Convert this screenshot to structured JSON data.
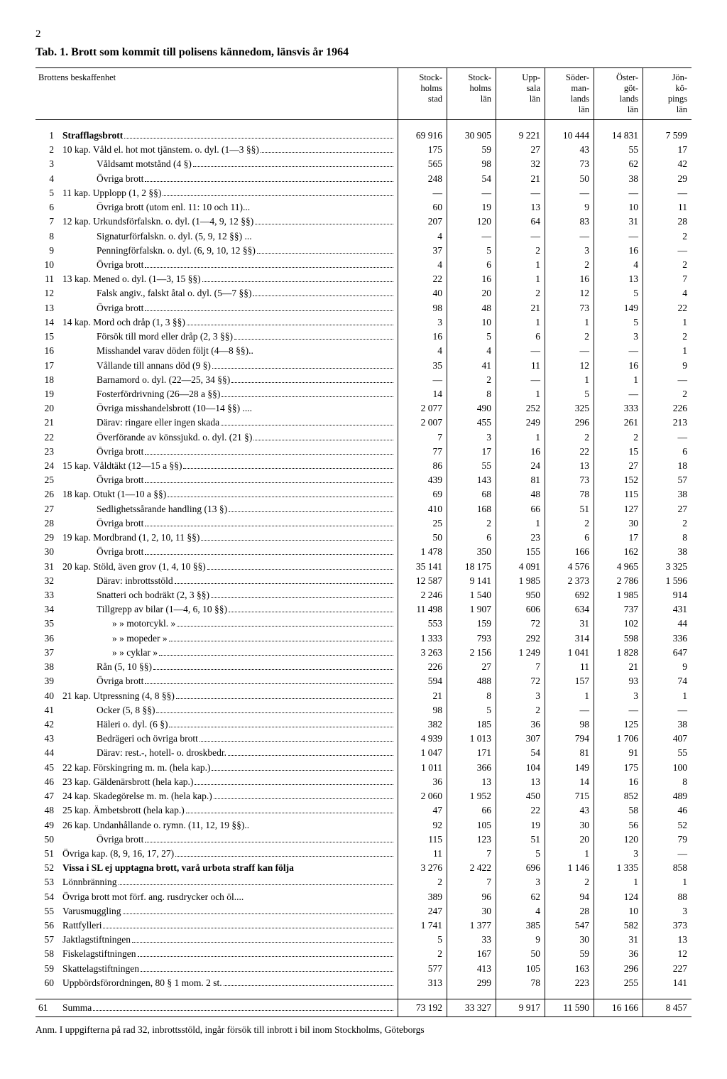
{
  "page_number": "2",
  "title": "Tab. 1. Brott som kommit till polisens kännedom, länsvis år 1964",
  "header": {
    "desc": "Brottens beskaffenhet",
    "cols": [
      "Stock-\nholms\nstad",
      "Stock-\nholms\nlän",
      "Upp-\nsala\nlän",
      "Söder-\nman-\nlands\nlän",
      "Öster-\ngöt-\nlands\nlän",
      "Jön-\nkö-\npings\nlän"
    ]
  },
  "rows": [
    {
      "n": 1,
      "desc": "Strafflagsbrott",
      "bold": true,
      "v": [
        "69 916",
        "30 905",
        "9 221",
        "10 444",
        "14 831",
        "7 599"
      ]
    },
    {
      "n": 2,
      "desc": "10 kap. Våld el. hot mot tjänstem. o. dyl. (1—3 §§)",
      "v": [
        "175",
        "59",
        "27",
        "43",
        "55",
        "17"
      ]
    },
    {
      "n": 3,
      "desc": "Våldsamt motstånd (4 §)",
      "indent": 1,
      "v": [
        "565",
        "98",
        "32",
        "73",
        "62",
        "42"
      ]
    },
    {
      "n": 4,
      "desc": "Övriga brott",
      "indent": 1,
      "v": [
        "248",
        "54",
        "21",
        "50",
        "38",
        "29"
      ]
    },
    {
      "n": 5,
      "desc": "11 kap. Upplopp (1, 2 §§)",
      "v": [
        "—",
        "—",
        "—",
        "—",
        "—",
        "—"
      ]
    },
    {
      "n": 6,
      "desc": "Övriga brott (utom enl. 11: 10 och 11)...",
      "indent": 1,
      "nodots": true,
      "v": [
        "60",
        "19",
        "13",
        "9",
        "10",
        "11"
      ]
    },
    {
      "n": 7,
      "desc": "12 kap. Urkundsförfalskn. o. dyl. (1—4, 9, 12 §§)",
      "v": [
        "207",
        "120",
        "64",
        "83",
        "31",
        "28"
      ]
    },
    {
      "n": 8,
      "desc": "Signaturförfalskn. o. dyl. (5, 9, 12 §§) ...",
      "indent": 1,
      "nodots": true,
      "v": [
        "4",
        "—",
        "—",
        "—",
        "—",
        "2"
      ]
    },
    {
      "n": 9,
      "desc": "Penningförfalskn. o. dyl. (6, 9, 10, 12 §§)",
      "indent": 1,
      "v": [
        "37",
        "5",
        "2",
        "3",
        "16",
        "—"
      ]
    },
    {
      "n": 10,
      "desc": "Övriga brott",
      "indent": 1,
      "v": [
        "4",
        "6",
        "1",
        "2",
        "4",
        "2"
      ]
    },
    {
      "n": 11,
      "desc": "13 kap. Mened o. dyl. (1—3, 15 §§)",
      "v": [
        "22",
        "16",
        "1",
        "16",
        "13",
        "7"
      ]
    },
    {
      "n": 12,
      "desc": "Falsk angiv., falskt åtal o. dyl. (5—7 §§)",
      "indent": 1,
      "v": [
        "40",
        "20",
        "2",
        "12",
        "5",
        "4"
      ]
    },
    {
      "n": 13,
      "desc": "Övriga brott",
      "indent": 1,
      "v": [
        "98",
        "48",
        "21",
        "73",
        "149",
        "22"
      ]
    },
    {
      "n": 14,
      "desc": "14 kap. Mord och dråp (1, 3 §§)",
      "v": [
        "3",
        "10",
        "1",
        "1",
        "5",
        "1"
      ]
    },
    {
      "n": 15,
      "desc": "Försök till mord eller dråp (2, 3 §§)",
      "indent": 1,
      "v": [
        "16",
        "5",
        "6",
        "2",
        "3",
        "2"
      ]
    },
    {
      "n": 16,
      "desc": "Misshandel varav döden följt (4—8 §§)..",
      "indent": 1,
      "nodots": true,
      "v": [
        "4",
        "4",
        "—",
        "—",
        "—",
        "1"
      ]
    },
    {
      "n": 17,
      "desc": "Vållande till annans död (9 §)",
      "indent": 1,
      "v": [
        "35",
        "41",
        "11",
        "12",
        "16",
        "9"
      ]
    },
    {
      "n": 18,
      "desc": "Barnamord o. dyl. (22—25, 34 §§)",
      "indent": 1,
      "v": [
        "—",
        "2",
        "—",
        "1",
        "1",
        "—"
      ]
    },
    {
      "n": 19,
      "desc": "Fosterfördrivning (26—28 a §§)",
      "indent": 1,
      "v": [
        "14",
        "8",
        "1",
        "5",
        "—",
        "2"
      ]
    },
    {
      "n": 20,
      "desc": "Övriga misshandelsbrott (10—14 §§) ....",
      "indent": 1,
      "nodots": true,
      "v": [
        "2 077",
        "490",
        "252",
        "325",
        "333",
        "226"
      ]
    },
    {
      "n": 21,
      "desc": "Därav: ringare eller ingen skada",
      "indent": 1,
      "v": [
        "2 007",
        "455",
        "249",
        "296",
        "261",
        "213"
      ]
    },
    {
      "n": 22,
      "desc": "Överförande av könssjukd. o. dyl. (21 §)",
      "indent": 1,
      "v": [
        "7",
        "3",
        "1",
        "2",
        "2",
        "—"
      ]
    },
    {
      "n": 23,
      "desc": "Övriga brott",
      "indent": 1,
      "v": [
        "77",
        "17",
        "16",
        "22",
        "15",
        "6"
      ]
    },
    {
      "n": 24,
      "desc": "15 kap. Våldtäkt (12—15 a §§)",
      "v": [
        "86",
        "55",
        "24",
        "13",
        "27",
        "18"
      ]
    },
    {
      "n": 25,
      "desc": "Övriga brott",
      "indent": 1,
      "v": [
        "439",
        "143",
        "81",
        "73",
        "152",
        "57"
      ]
    },
    {
      "n": 26,
      "desc": "18 kap. Otukt (1—10 a §§)",
      "v": [
        "69",
        "68",
        "48",
        "78",
        "115",
        "38"
      ]
    },
    {
      "n": 27,
      "desc": "Sedlighetssårande handling (13 §)",
      "indent": 1,
      "v": [
        "410",
        "168",
        "66",
        "51",
        "127",
        "27"
      ]
    },
    {
      "n": 28,
      "desc": "Övriga brott",
      "indent": 1,
      "v": [
        "25",
        "2",
        "1",
        "2",
        "30",
        "2"
      ]
    },
    {
      "n": 29,
      "desc": "19 kap. Mordbrand (1, 2, 10, 11 §§)",
      "v": [
        "50",
        "6",
        "23",
        "6",
        "17",
        "8"
      ]
    },
    {
      "n": 30,
      "desc": "Övriga brott",
      "indent": 1,
      "v": [
        "1 478",
        "350",
        "155",
        "166",
        "162",
        "38"
      ]
    },
    {
      "n": 31,
      "desc": "20 kap. Stöld, även grov (1, 4, 10 §§)",
      "v": [
        "35 141",
        "18 175",
        "4 091",
        "4 576",
        "4 965",
        "3 325"
      ]
    },
    {
      "n": 32,
      "desc": "Därav: inbrottsstöld",
      "indent": 1,
      "v": [
        "12 587",
        "9 141",
        "1 985",
        "2 373",
        "2 786",
        "1 596"
      ]
    },
    {
      "n": 33,
      "desc": "Snatteri och bodräkt (2, 3 §§)",
      "indent": 1,
      "v": [
        "2 246",
        "1 540",
        "950",
        "692",
        "1 985",
        "914"
      ]
    },
    {
      "n": 34,
      "desc": "Tillgrepp av bilar (1—4, 6, 10 §§)",
      "indent": 1,
      "v": [
        "11 498",
        "1 907",
        "606",
        "634",
        "737",
        "431"
      ]
    },
    {
      "n": 35,
      "desc": "»       » motorcykl.    »",
      "indent": 2,
      "v": [
        "553",
        "159",
        "72",
        "31",
        "102",
        "44"
      ]
    },
    {
      "n": 36,
      "desc": "»       » mopeder       »",
      "indent": 2,
      "v": [
        "1 333",
        "793",
        "292",
        "314",
        "598",
        "336"
      ]
    },
    {
      "n": 37,
      "desc": "»       » cyklar        »",
      "indent": 2,
      "v": [
        "3 263",
        "2 156",
        "1 249",
        "1 041",
        "1 828",
        "647"
      ]
    },
    {
      "n": 38,
      "desc": "Rån (5, 10 §§)",
      "indent": 1,
      "v": [
        "226",
        "27",
        "7",
        "11",
        "21",
        "9"
      ]
    },
    {
      "n": 39,
      "desc": "Övriga brott",
      "indent": 1,
      "v": [
        "594",
        "488",
        "72",
        "157",
        "93",
        "74"
      ]
    },
    {
      "n": 40,
      "desc": "21 kap. Utpressning (4, 8 §§)",
      "v": [
        "21",
        "8",
        "3",
        "1",
        "3",
        "1"
      ]
    },
    {
      "n": 41,
      "desc": "Ocker (5, 8 §§)",
      "indent": 1,
      "v": [
        "98",
        "5",
        "2",
        "—",
        "—",
        "—"
      ]
    },
    {
      "n": 42,
      "desc": "Häleri o. dyl. (6 §)",
      "indent": 1,
      "v": [
        "382",
        "185",
        "36",
        "98",
        "125",
        "38"
      ]
    },
    {
      "n": 43,
      "desc": "Bedrägeri och övriga brott",
      "indent": 1,
      "v": [
        "4 939",
        "1 013",
        "307",
        "794",
        "1 706",
        "407"
      ]
    },
    {
      "n": 44,
      "desc": "Därav: rest.-, hotell- o. droskbedr.",
      "indent": 1,
      "v": [
        "1 047",
        "171",
        "54",
        "81",
        "91",
        "55"
      ]
    },
    {
      "n": 45,
      "desc": "22 kap. Förskingring m. m. (hela kap.)",
      "v": [
        "1 011",
        "366",
        "104",
        "149",
        "175",
        "100"
      ]
    },
    {
      "n": 46,
      "desc": "23 kap. Gäldenärsbrott (hela kap.)",
      "v": [
        "36",
        "13",
        "13",
        "14",
        "16",
        "8"
      ]
    },
    {
      "n": 47,
      "desc": "24 kap. Skadegörelse m. m. (hela kap.)",
      "v": [
        "2 060",
        "1 952",
        "450",
        "715",
        "852",
        "489"
      ]
    },
    {
      "n": 48,
      "desc": "25 kap. Ämbetsbrott (hela kap.)",
      "v": [
        "47",
        "66",
        "22",
        "43",
        "58",
        "46"
      ]
    },
    {
      "n": 49,
      "desc": "26 kap. Undanhållande o. rymn. (11, 12, 19 §§)..",
      "nodots": true,
      "v": [
        "92",
        "105",
        "19",
        "30",
        "56",
        "52"
      ]
    },
    {
      "n": 50,
      "desc": "Övriga brott",
      "indent": 1,
      "v": [
        "115",
        "123",
        "51",
        "20",
        "120",
        "79"
      ]
    },
    {
      "n": 51,
      "desc": "Övriga kap. (8, 9, 16, 17, 27)",
      "v": [
        "11",
        "7",
        "5",
        "1",
        "3",
        "—"
      ]
    },
    {
      "n": 52,
      "desc": "Vissa i SL ej upptagna brott, varå urbota straff kan följa",
      "bold": true,
      "wrap": true,
      "v": [
        "3 276",
        "2 422",
        "696",
        "1 146",
        "1 335",
        "858"
      ]
    },
    {
      "n": 53,
      "desc": "Lönnbränning",
      "v": [
        "2",
        "7",
        "3",
        "2",
        "1",
        "1"
      ]
    },
    {
      "n": 54,
      "desc": "Övriga brott mot förf. ang. rusdrycker och öl....",
      "nodots": true,
      "v": [
        "389",
        "96",
        "62",
        "94",
        "124",
        "88"
      ]
    },
    {
      "n": 55,
      "desc": "Varusmuggling",
      "v": [
        "247",
        "30",
        "4",
        "28",
        "10",
        "3"
      ]
    },
    {
      "n": 56,
      "desc": "Rattfylleri",
      "v": [
        "1 741",
        "1 377",
        "385",
        "547",
        "582",
        "373"
      ]
    },
    {
      "n": 57,
      "desc": "Jaktlagstiftningen",
      "v": [
        "5",
        "33",
        "9",
        "30",
        "31",
        "13"
      ]
    },
    {
      "n": 58,
      "desc": "Fiskelagstiftningen",
      "v": [
        "2",
        "167",
        "50",
        "59",
        "36",
        "12"
      ]
    },
    {
      "n": 59,
      "desc": "Skattelagstiftningen",
      "v": [
        "577",
        "413",
        "105",
        "163",
        "296",
        "227"
      ]
    },
    {
      "n": 60,
      "desc": "Uppbördsförordningen, 80 § 1 mom. 2 st.",
      "v": [
        "313",
        "299",
        "78",
        "223",
        "255",
        "141"
      ]
    }
  ],
  "total": {
    "n": 61,
    "desc": "Summa",
    "v": [
      "73 192",
      "33 327",
      "9 917",
      "11 590",
      "16 166",
      "8 457"
    ]
  },
  "footnote": "Anm. I uppgifterna på rad 32, inbrottsstöld, ingår försök till inbrott i bil inom Stockholms, Göteborgs"
}
